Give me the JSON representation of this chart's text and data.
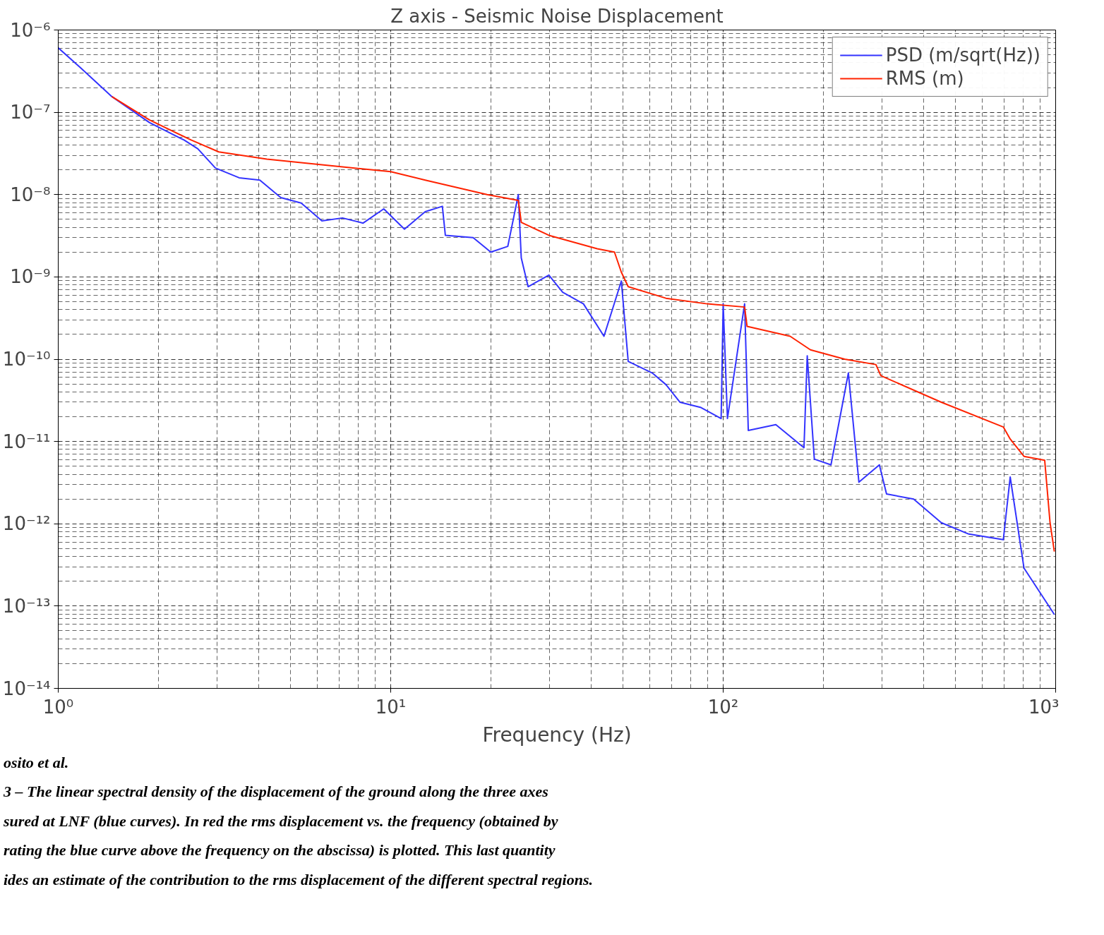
{
  "chart_data": {
    "type": "line",
    "title": "Z axis - Seismic Noise Displacement",
    "xlabel": "Frequency (Hz)",
    "log": "xy",
    "grid": true,
    "legend": "top right",
    "line_style": "solid",
    "xlim": [
      1,
      1000
    ],
    "ylim": [
      1e-14,
      1e-06
    ],
    "xticks": [
      {
        "value": 1,
        "label": "10⁰"
      },
      {
        "value": 10,
        "label": "10¹"
      },
      {
        "value": 100,
        "label": "10²"
      },
      {
        "value": 1000,
        "label": "10³"
      }
    ],
    "yticks": [
      {
        "value": 1e-14,
        "label": "10⁻¹⁴"
      },
      {
        "value": 1e-13,
        "label": "10⁻¹³"
      },
      {
        "value": 1e-12,
        "label": "10⁻¹²"
      },
      {
        "value": 1e-11,
        "label": "10⁻¹¹"
      },
      {
        "value": 1e-10,
        "label": "10⁻¹⁰"
      },
      {
        "value": 1e-09,
        "label": "10⁻⁹"
      },
      {
        "value": 1e-08,
        "label": "10⁻⁸"
      },
      {
        "value": 1e-07,
        "label": "10⁻⁷"
      },
      {
        "value": 1e-06,
        "label": "10⁻⁶"
      }
    ],
    "series": [
      {
        "name": "PSD (m/sqrt(Hz))",
        "color": "#3333ff",
        "x": [
          1.0,
          1.17,
          1.45,
          1.88,
          2.39,
          2.63,
          2.97,
          3.5,
          4.04,
          4.67,
          5.38,
          6.21,
          7.16,
          8.26,
          9.53,
          11.0,
          12.7,
          14.3,
          14.6,
          17.7,
          20.0,
          22.5,
          24.2,
          24.7,
          25.9,
          29.9,
          32.9,
          38.0,
          43.8,
          49.4,
          51.8,
          61.2,
          67.3,
          74.1,
          85.4,
          98.6,
          100,
          103,
          116,
          119,
          144,
          175,
          179,
          188,
          211,
          238,
          256,
          295,
          310,
          374,
          453,
          548,
          696,
          730,
          803,
          991
        ],
        "values": [
          6.07e-07,
          3.45e-07,
          1.55e-07,
          7.5e-08,
          4.6e-08,
          3.6e-08,
          2.1e-08,
          1.6e-08,
          1.5e-08,
          9.2e-09,
          7.9e-09,
          4.8e-09,
          5.2e-09,
          4.5e-09,
          6.7e-09,
          3.8e-09,
          6.2e-09,
          7.2e-09,
          3.2e-09,
          3e-09,
          2e-09,
          2.35e-09,
          1e-08,
          1.7e-09,
          7.6e-10,
          1.05e-09,
          6.5e-10,
          4.7e-10,
          1.9e-10,
          8.9e-10,
          9.4e-11,
          6.8e-11,
          4.9e-11,
          3e-11,
          2.6e-11,
          1.9e-11,
          4.7e-10,
          1.9e-11,
          4.7e-10,
          1.36e-11,
          1.6e-11,
          8.4e-12,
          1.1e-10,
          6.1e-12,
          5.2e-12,
          6.8e-11,
          3.2e-12,
          5.2e-12,
          2.3e-12,
          2e-12,
          1.03e-12,
          7.5e-13,
          6.4e-13,
          3.7e-12,
          2.9e-13,
          7.9e-14
        ]
      },
      {
        "name": "RMS (m)",
        "color": "#ff2200",
        "x": [
          1.45,
          1.88,
          2.51,
          3.04,
          4.24,
          6.21,
          10,
          12.7,
          19.5,
          24.2,
          24.7,
          29.9,
          41.8,
          47.1,
          49.4,
          51.8,
          67.3,
          89.6,
          116,
          118,
          159,
          183,
          232,
          288,
          298,
          453,
          696,
          730,
          803,
          927,
          962,
          991
        ],
        "values": [
          1.55e-07,
          8.1e-08,
          4.6e-08,
          3.3e-08,
          2.7e-08,
          2.3e-08,
          1.9e-08,
          1.5e-08,
          1e-08,
          8.5e-09,
          4.6e-09,
          3.2e-09,
          2.2e-09,
          2e-09,
          1.14e-09,
          7.6e-10,
          5.5e-10,
          4.7e-10,
          4.3e-10,
          2.5e-10,
          1.9e-10,
          1.3e-10,
          1e-10,
          8.6e-11,
          6.3e-11,
          3e-11,
          1.5e-11,
          1.07e-11,
          6.6e-12,
          5.9e-12,
          1.03e-12,
          4.6e-13
        ]
      }
    ],
    "annotations": [
      "osito et al.",
      "3 – The linear spectral density of the displacement of the ground along the three axes",
      "sured at LNF (blue curves). In red the rms displacement vs. the frequency (obtained by",
      "rating the blue curve above the frequency on the abscissa) is plotted. This last quantity",
      "ides an estimate of the contribution to the rms displacement of the different spectral regions."
    ]
  }
}
